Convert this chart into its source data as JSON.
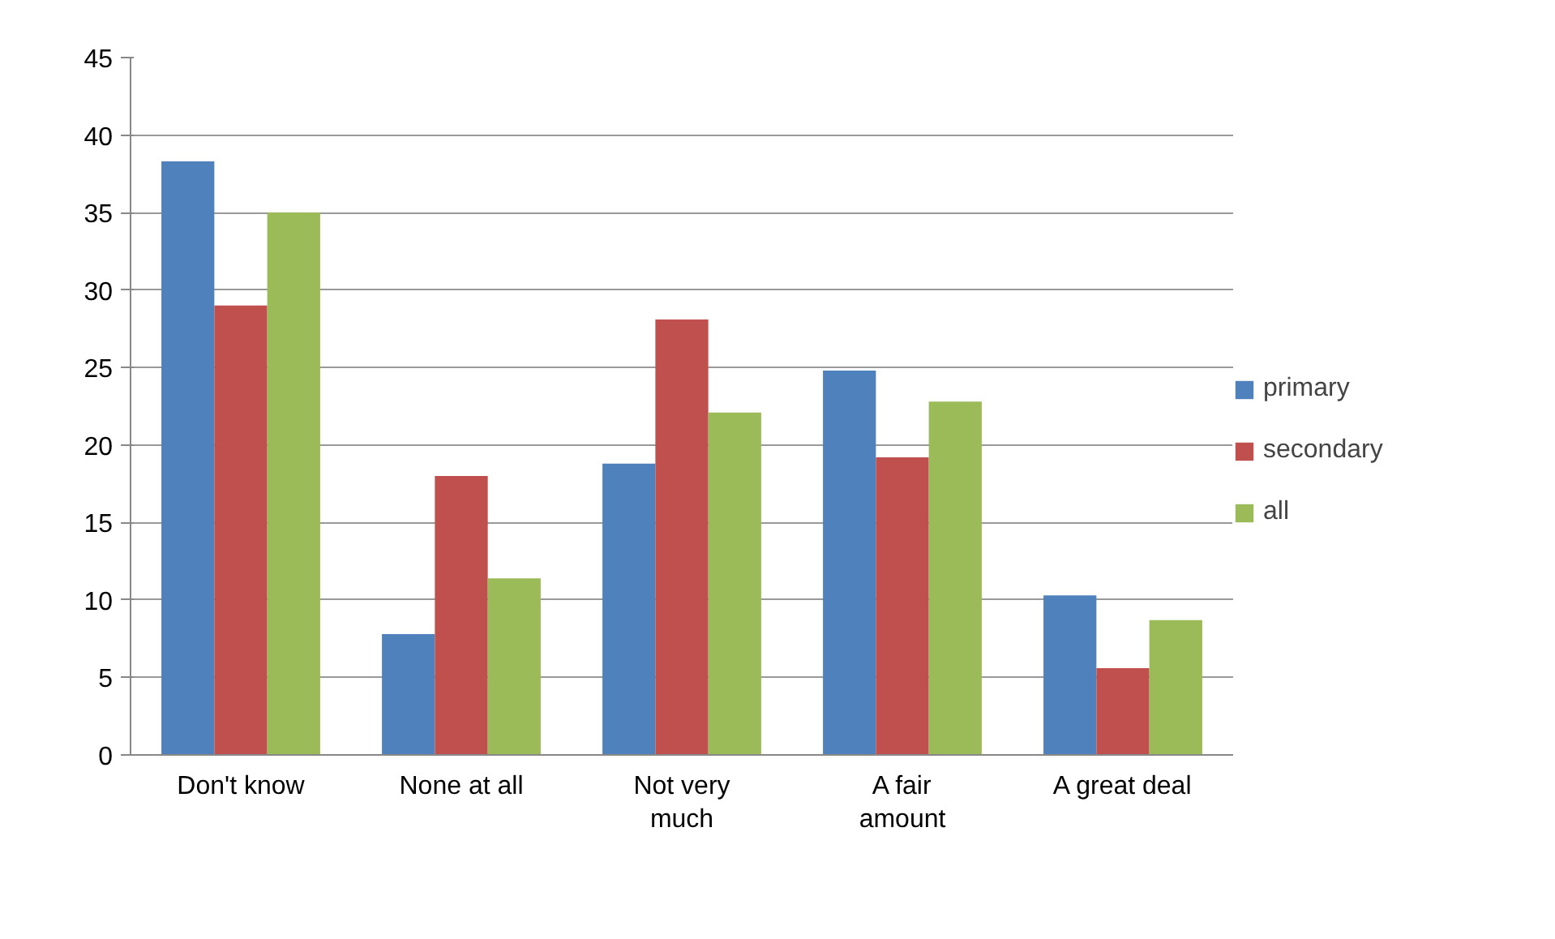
{
  "chart_data": {
    "type": "bar",
    "categories": [
      "Don't know",
      "None at all",
      "Not very\nmuch",
      "A fair\namount",
      "A great deal"
    ],
    "series": [
      {
        "name": "primary",
        "color": "#4f81bd",
        "values": [
          38.3,
          7.8,
          18.8,
          24.8,
          10.3
        ]
      },
      {
        "name": "secondary",
        "color": "#c0504d",
        "values": [
          29,
          18,
          28.1,
          19.2,
          5.6
        ]
      },
      {
        "name": "all",
        "color": "#9bbb59",
        "values": [
          35,
          11.4,
          22.1,
          22.8,
          8.7
        ]
      }
    ],
    "ylim": [
      0,
      45
    ],
    "yticks": [
      0,
      5,
      10,
      15,
      20,
      25,
      30,
      35,
      40,
      45
    ],
    "grid": "y",
    "legend": "right"
  }
}
